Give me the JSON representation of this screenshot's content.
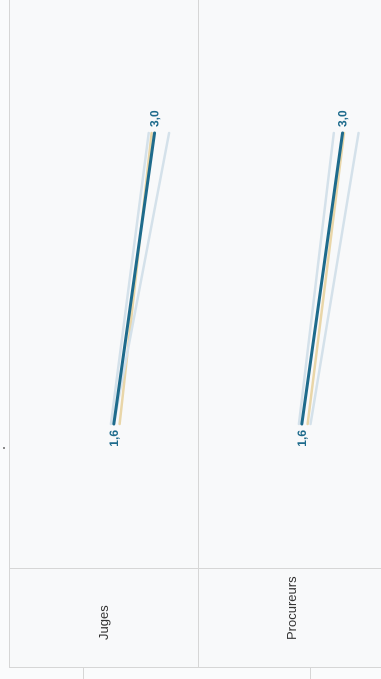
{
  "chart_data": {
    "type": "line",
    "orientation": "rotated-90",
    "panels": [
      {
        "name": "Juges",
        "series": [
          {
            "values": [
              1.6,
              3.0
            ],
            "color": "#1e6b8c",
            "highlight": true,
            "label_start": "1,6",
            "label_end": "3,0"
          },
          {
            "values": [
              1.8,
              2.9
            ],
            "color": "#e9d6a8"
          },
          {
            "values": [
              1.5,
              2.8
            ],
            "color": "#d4e1ea"
          },
          {
            "values": [
              1.6,
              3.5
            ],
            "color": "#d4e1ea"
          }
        ]
      },
      {
        "name": "Procureurs",
        "series": [
          {
            "values": [
              1.6,
              3.0
            ],
            "color": "#1e6b8c",
            "highlight": true,
            "label_start": "1,6",
            "label_end": "3,0"
          },
          {
            "values": [
              1.8,
              3.05
            ],
            "color": "#e9d6a8"
          },
          {
            "values": [
              1.5,
              2.7
            ],
            "color": "#d4e1ea"
          },
          {
            "values": [
              1.9,
              3.55
            ],
            "color": "#d4e1ea"
          }
        ]
      }
    ],
    "labels": {
      "juges": "Juges",
      "procureurs": "Procureurs"
    }
  }
}
